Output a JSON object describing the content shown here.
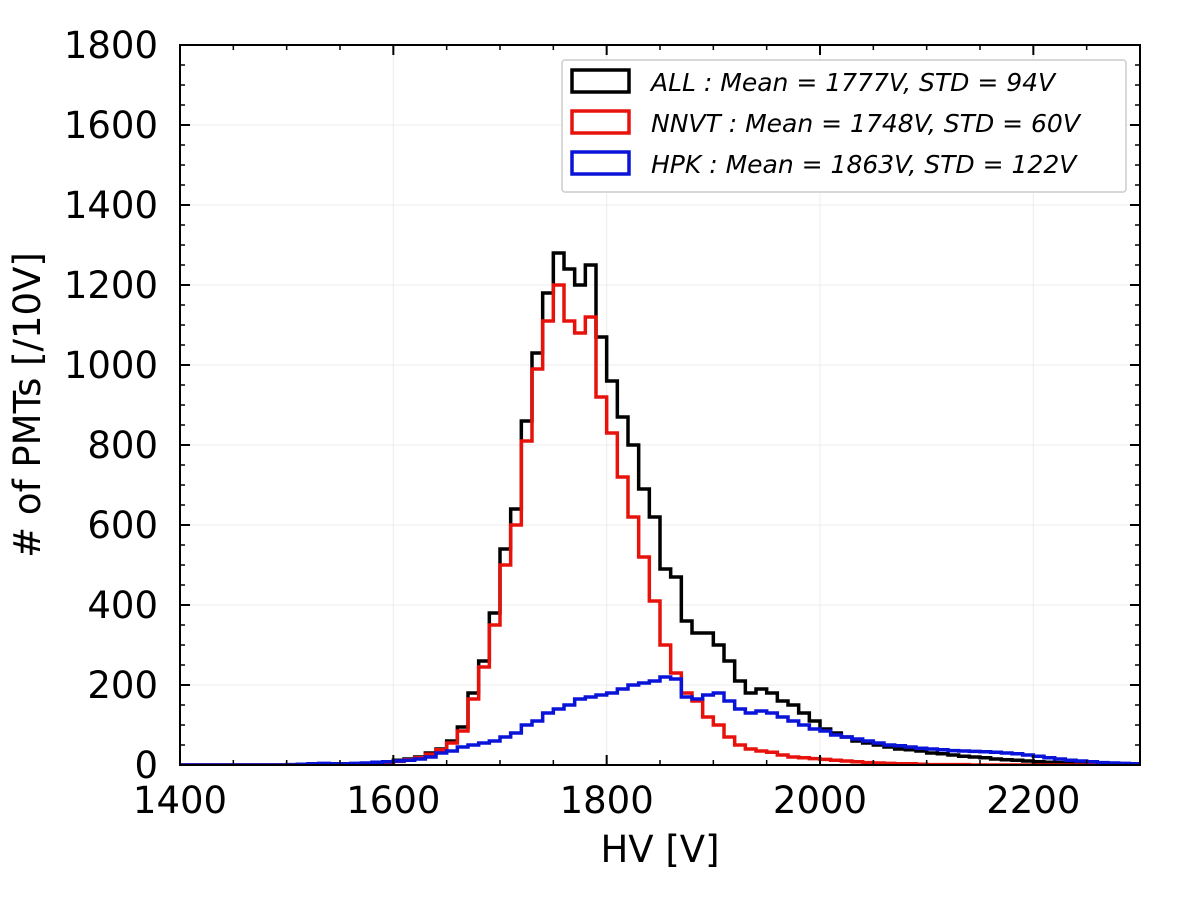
{
  "chart_data": {
    "type": "histogram",
    "title": "",
    "xlabel": "HV [V]",
    "ylabel": "# of PMTs [/10V]",
    "xlim": [
      1400,
      2300
    ],
    "ylim": [
      0,
      1800
    ],
    "bin_width": 10,
    "xticks": [
      "1400",
      "1600",
      "1800",
      "2000",
      "2200"
    ],
    "yticks": [
      "0",
      "200",
      "400",
      "600",
      "800",
      "1000",
      "1200",
      "1400",
      "1600",
      "1800"
    ],
    "grid": true,
    "legend_position": "top-right",
    "series": [
      {
        "name": "ALL : Mean = 1777V, STD = 94V",
        "color": "#000000",
        "x_start": 1400,
        "values": [
          0,
          0,
          0,
          0,
          0,
          0,
          0,
          0,
          0,
          0,
          1,
          1,
          2,
          2,
          2,
          3,
          3,
          4,
          5,
          6,
          12,
          15,
          20,
          30,
          40,
          60,
          95,
          180,
          260,
          380,
          540,
          640,
          860,
          1030,
          1180,
          1280,
          1240,
          1200,
          1250,
          1070,
          960,
          870,
          800,
          690,
          620,
          490,
          470,
          360,
          330,
          330,
          300,
          260,
          210,
          180,
          190,
          180,
          160,
          150,
          130,
          110,
          90,
          80,
          70,
          60,
          55,
          50,
          45,
          40,
          38,
          35,
          30,
          28,
          25,
          22,
          20,
          18,
          15,
          13,
          12,
          10,
          8,
          7,
          6,
          5,
          5,
          4,
          3,
          3,
          2,
          2,
          1
        ]
      },
      {
        "name": "NNVT : Mean = 1748V, STD = 60V",
        "color": "#e8120c",
        "x_start": 1400,
        "values": [
          0,
          0,
          0,
          0,
          0,
          0,
          0,
          0,
          0,
          0,
          0,
          0,
          0,
          0,
          0,
          1,
          1,
          2,
          3,
          5,
          9,
          13,
          18,
          27,
          38,
          55,
          85,
          165,
          245,
          350,
          500,
          600,
          810,
          990,
          1110,
          1200,
          1110,
          1080,
          1120,
          920,
          830,
          720,
          620,
          520,
          410,
          300,
          230,
          180,
          160,
          120,
          100,
          70,
          50,
          40,
          35,
          32,
          25,
          20,
          18,
          16,
          14,
          12,
          10,
          8,
          6,
          5,
          4,
          3,
          3,
          2,
          1,
          1,
          1,
          1,
          0,
          0,
          0,
          0,
          0,
          0,
          0,
          0,
          0,
          0,
          0,
          0,
          0,
          0,
          0
        ]
      },
      {
        "name": "HPK : Mean = 1863V, STD = 122V",
        "color": "#0a14d8",
        "x_start": 1400,
        "values": [
          0,
          0,
          0,
          0,
          0,
          0,
          0,
          0,
          0,
          0,
          0,
          2,
          3,
          4,
          3,
          3,
          4,
          5,
          7,
          8,
          10,
          12,
          15,
          20,
          30,
          35,
          45,
          50,
          55,
          60,
          70,
          80,
          100,
          110,
          130,
          140,
          150,
          165,
          170,
          175,
          180,
          190,
          200,
          205,
          210,
          220,
          215,
          170,
          165,
          175,
          180,
          160,
          140,
          130,
          135,
          130,
          120,
          110,
          100,
          90,
          85,
          75,
          70,
          65,
          60,
          55,
          50,
          48,
          45,
          42,
          40,
          38,
          36,
          35,
          34,
          33,
          32,
          30,
          28,
          25,
          22,
          18,
          15,
          12,
          10,
          8,
          6,
          5,
          4,
          3,
          2
        ]
      }
    ]
  }
}
